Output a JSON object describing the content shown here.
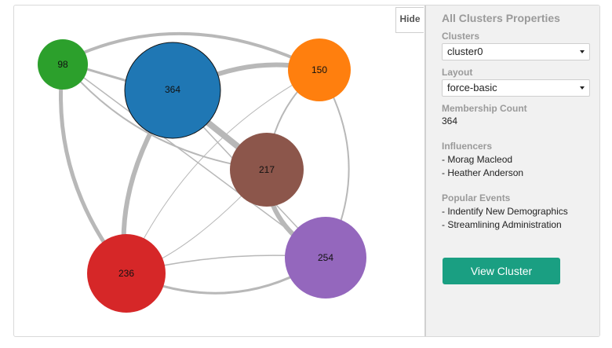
{
  "graph": {
    "hide_label": "Hide",
    "nodes": [
      {
        "id": "n98",
        "label": "98",
        "color": "#2ca02c"
      },
      {
        "id": "n364",
        "label": "364",
        "color": "#1f77b4"
      },
      {
        "id": "n150",
        "label": "150",
        "color": "#ff7f0e"
      },
      {
        "id": "n217",
        "label": "217",
        "color": "#8c564b"
      },
      {
        "id": "n236",
        "label": "236",
        "color": "#d62728"
      },
      {
        "id": "n254",
        "label": "254",
        "color": "#9467bd"
      }
    ]
  },
  "panel": {
    "title": "All Clusters Properties",
    "clusters_label": "Clusters",
    "clusters_value": "cluster0",
    "layout_label": "Layout",
    "layout_value": "force-basic",
    "membership_label": "Membership Count",
    "membership_value": "364",
    "influencers_label": "Influencers",
    "influencers": [
      "- Morag Macleod",
      "- Heather Anderson"
    ],
    "events_label": "Popular Events",
    "events": [
      "- Indentify New Demographics",
      "- Streamlining Administration"
    ],
    "view_button": "View Cluster"
  },
  "colors": {
    "edge": "#b8b8b8",
    "button": "#1a9f82",
    "panel_bg": "#f1f1f1"
  }
}
